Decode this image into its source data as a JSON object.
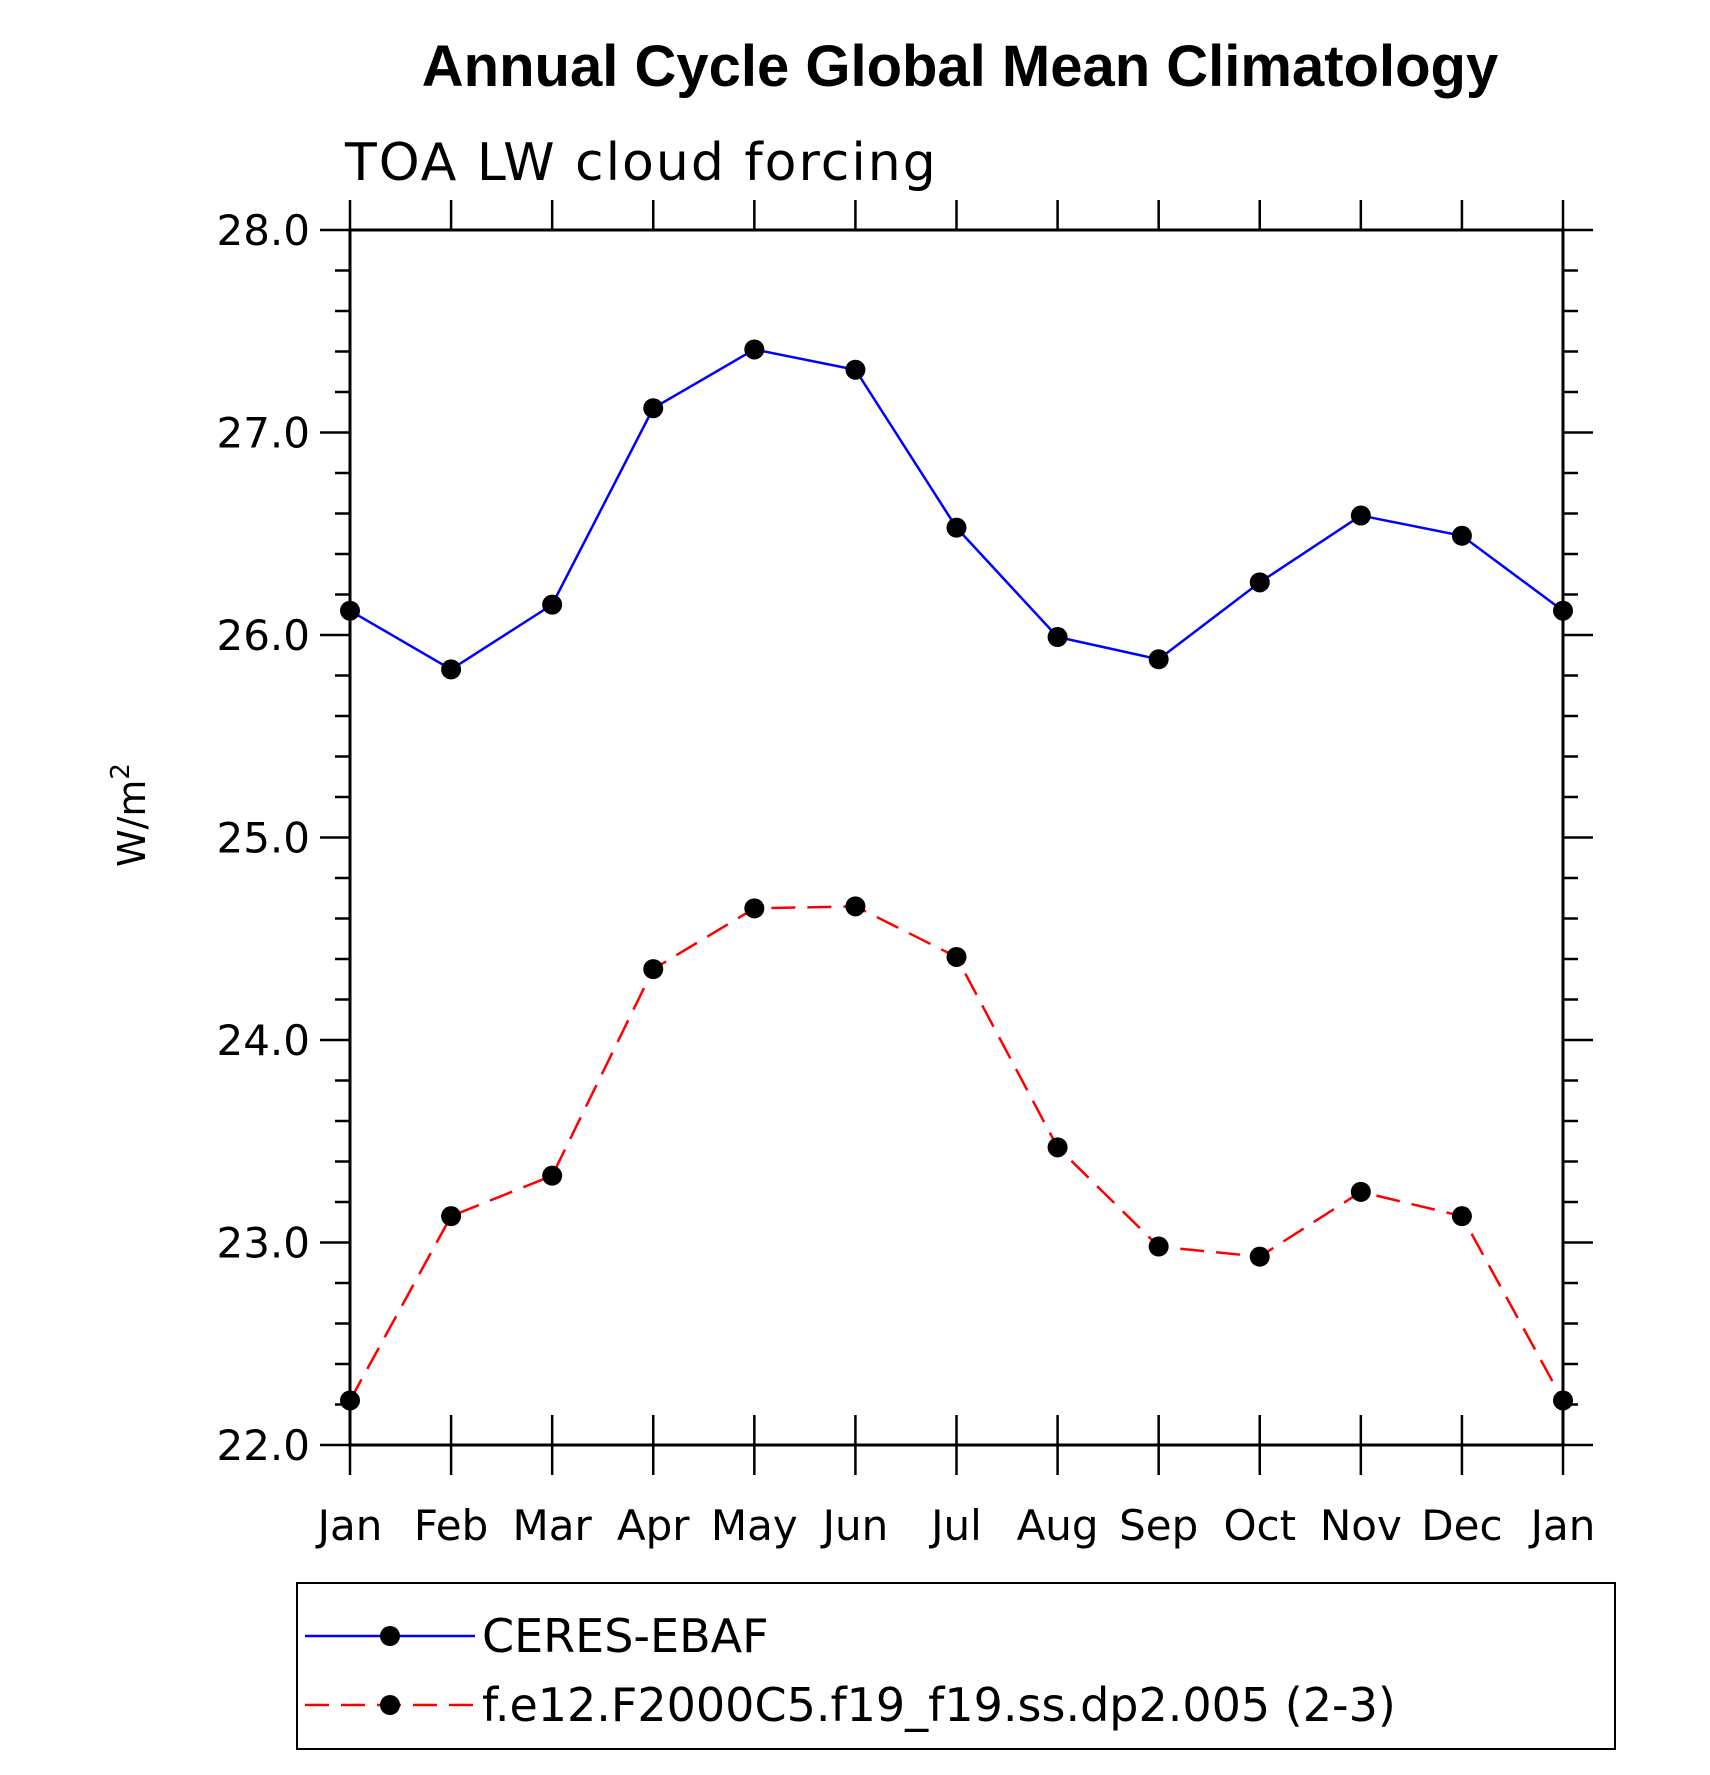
{
  "chart_data": {
    "type": "line",
    "title": "Annual Cycle Global Mean Climatology",
    "subtitle": "TOA LW cloud forcing",
    "ylabel": "W/m",
    "ylabel_superscript": "2",
    "xlabel": "",
    "categories": [
      "Jan",
      "Feb",
      "Mar",
      "Apr",
      "May",
      "Jun",
      "Jul",
      "Aug",
      "Sep",
      "Oct",
      "Nov",
      "Dec",
      "Jan"
    ],
    "ylim": [
      22.0,
      28.0
    ],
    "yticks": [
      "22.0",
      "23.0",
      "24.0",
      "25.0",
      "26.0",
      "27.0",
      "28.0"
    ],
    "grid": false,
    "legend_position": "bottom",
    "series": [
      {
        "name": "CERES-EBAF",
        "color": "#0000ff",
        "line_style": "solid",
        "marker": "filled-circle",
        "values": [
          26.12,
          25.83,
          26.15,
          27.12,
          27.41,
          27.31,
          26.53,
          25.99,
          25.88,
          26.26,
          26.59,
          26.49,
          26.12
        ]
      },
      {
        "name": "f.e12.F2000C5.f19_f19.ss.dp2.005 (2-3)",
        "color": "#ff0000",
        "line_style": "dashed",
        "marker": "filled-circle",
        "values": [
          22.22,
          23.13,
          23.33,
          24.35,
          24.65,
          24.66,
          24.41,
          23.47,
          22.98,
          22.93,
          23.25,
          23.13,
          22.22
        ]
      }
    ]
  }
}
